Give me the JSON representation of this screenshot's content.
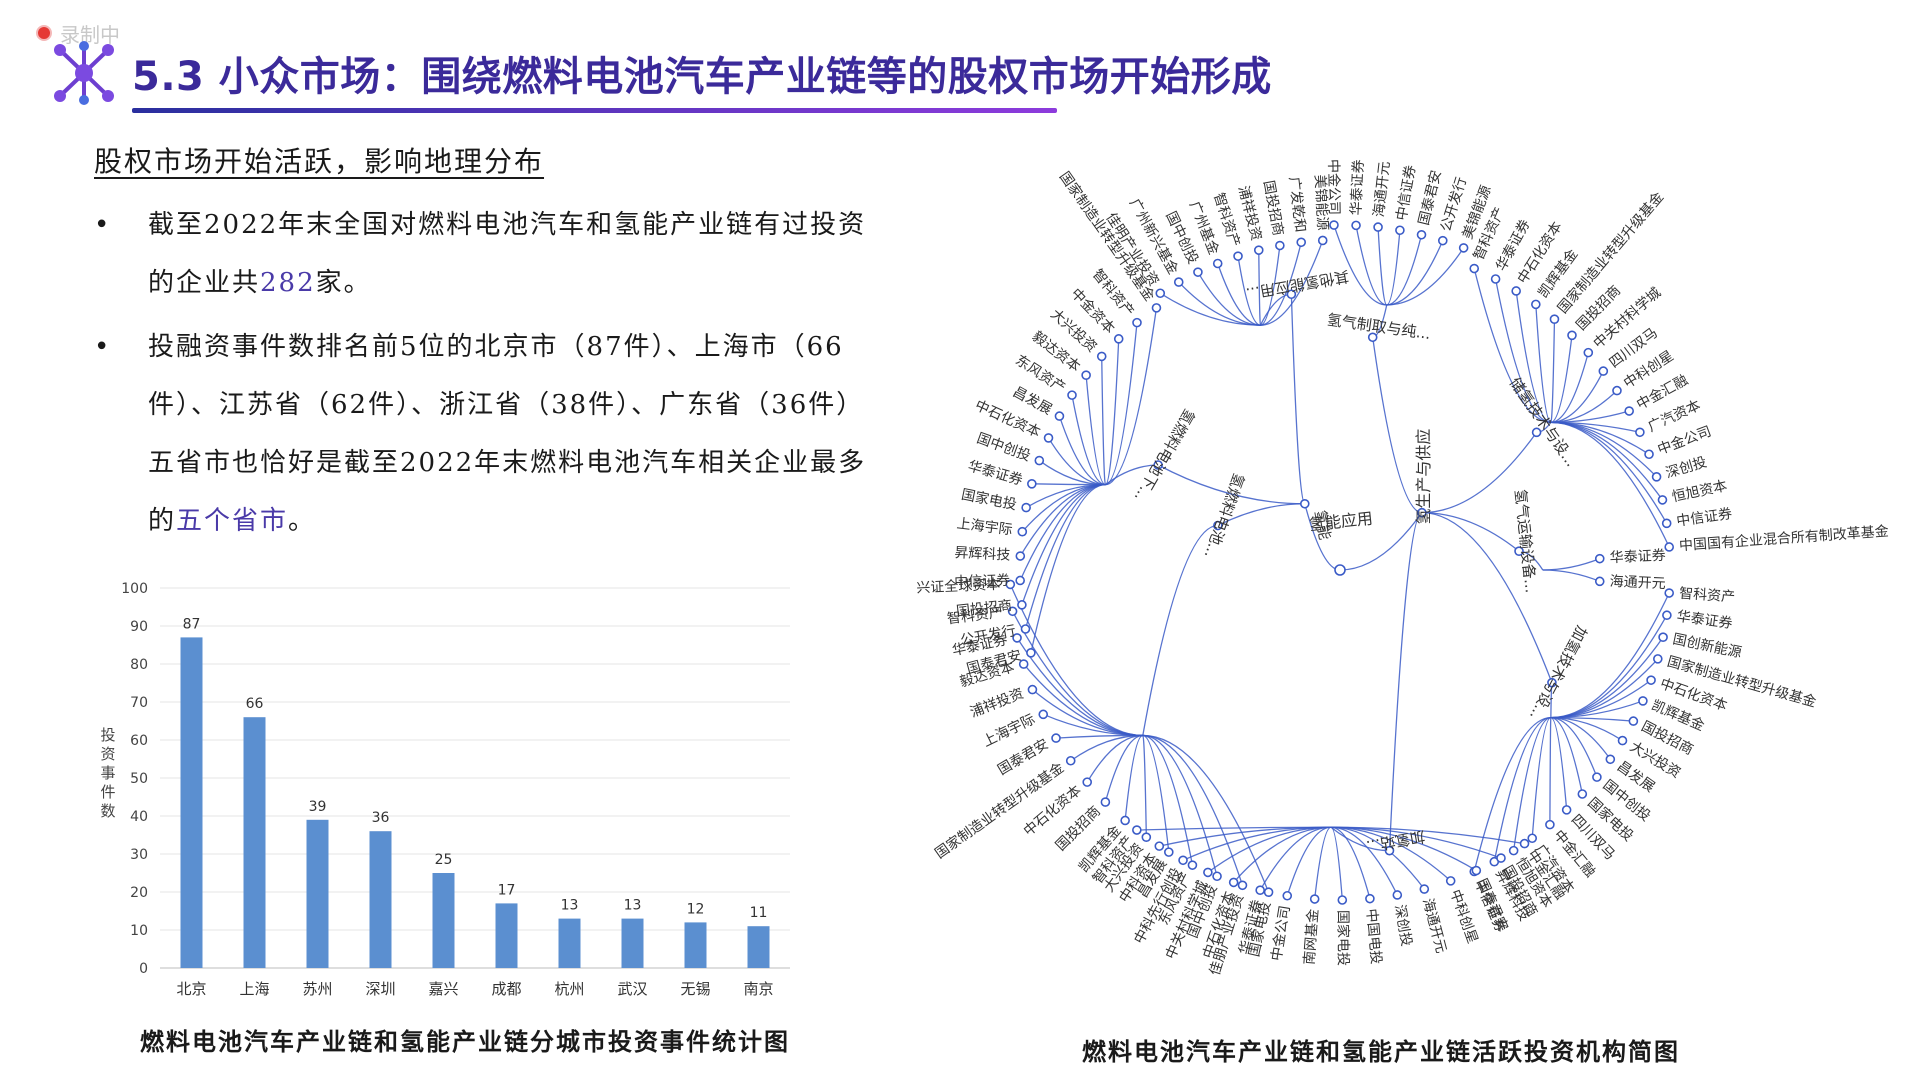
{
  "recording_label": "录制中",
  "header": {
    "title": "5.3 小众市场：围绕燃料电池汽车产业链等的股权市场开始形成"
  },
  "subtitle": "股权市场开始活跃，影响地理分布",
  "bullets": {
    "b1": {
      "pre": "截至2022年末全国对燃料电池汽车和氢能产业链有过投资的企业共",
      "count": "282",
      "post": "家。"
    },
    "b2": {
      "pre": "投融资事件数排名前5位的北京市（87件）、上海市（66件）、江苏省（62件）、浙江省（38件）、广东省（36件）五省市也恰好是截至2022年末燃料电池汽车相关企业最多的",
      "highlight": "五个省市",
      "post": "。"
    }
  },
  "captions": {
    "bar": "燃料电池汽车产业链和氢能产业链分城市投资事件统计图",
    "tree": "燃料电池汽车产业链和氢能产业链活跃投资机构简图"
  },
  "colors": {
    "bar": "#5b8fd0",
    "title": "#3b2a9a",
    "highlight": "#4a3aa8",
    "tree": "#3a5bc7"
  },
  "chart_data": [
    {
      "type": "bar",
      "categories": [
        "北京",
        "上海",
        "苏州",
        "深圳",
        "嘉兴",
        "成都",
        "杭州",
        "武汉",
        "无锡",
        "南京"
      ],
      "values": [
        87,
        66,
        39,
        36,
        25,
        17,
        13,
        13,
        12,
        11
      ],
      "ylabel": "投资事件数",
      "ylim": [
        0,
        100
      ],
      "yticks": [
        0,
        10,
        20,
        30,
        40,
        50,
        60,
        70,
        80,
        90,
        100
      ],
      "grid": true,
      "data_labels": true
    },
    {
      "type": "tree",
      "root": "氢能",
      "children": [
        {
          "name": "氢能应用",
          "children": [
            {
              "name": "氢燃料电池下...",
              "children": [
                "国泰君安",
                "公开发行",
                "国投招商",
                "中信证券",
                "昇辉科技",
                "上海宇际",
                "国家电投",
                "华泰证券",
                "国中创投",
                "中石化资本",
                "昌发展",
                "东风资产",
                "毅达资本",
                "大兴投资",
                "中金资本",
                "智科资产",
                "国家制造业转型升级基金"
              ]
            },
            {
              "name": "氢燃料电池...",
              "children": [
                "国家电投",
                "佳朋产业投资",
                "国中创投",
                "东风资产",
                "昌发展",
                "大兴投资",
                "凯辉基金",
                "国投招商",
                "中石化资本",
                "国家制造业转型升级基金",
                "国泰君安",
                "上海宇际",
                "浦祥投资",
                "毅达资本",
                "华泰证券",
                "智科资产",
                "兴证全球资本"
              ]
            },
            {
              "name": "其他氢能应用...",
              "children": [
                "佳明产业投资",
                "广州新兴基金",
                "国中创投",
                "广州基金",
                "智科资产",
                "浦祥投资",
                "国投招商",
                "广发乾和",
                "美锦能源"
              ]
            }
          ]
        },
        {
          "name": "氢生产与供应",
          "children": [
            {
              "name": "氢气制取与纯...",
              "children": [
                "中金公司",
                "华泰证券",
                "海通开元",
                "中信证券",
                "国泰君安",
                "公开发行",
                "美锦能源"
              ]
            },
            {
              "name": "储氢技术与设...",
              "children": [
                "智科资产",
                "华泰证券",
                "中石化资本",
                "凯辉基金",
                "国家制造业转型升级基金",
                "国投招商",
                "中关村科学城",
                "四川双马",
                "中科创星",
                "中金汇融",
                "广汽资本",
                "中金公司",
                "深创投",
                "恒旭资本",
                "中信证券",
                "中国国有企业混合所有制改革基金"
              ]
            },
            {
              "name": "氢气运输设备...",
              "children": [
                "华泰证券",
                "海通开元"
              ]
            },
            {
              "name": "加氢技术与设...",
              "children": [
                "智科资产",
                "华泰证券",
                "国创新能源",
                "国家制造业转型升级基金",
                "中石化资本",
                "凯辉基金",
                "国投招商",
                "大兴投资",
                "昌发展",
                "国中创投",
                "国家电投",
                "四川双马",
                "中金汇融",
                "广汽资本",
                "恒旭资本",
                "昇辉科技",
                "中信证券"
              ]
            },
            {
              "name": "加氢站...",
              "children": [
                "中金汇融",
                "国投招商",
                "国泰君安",
                "中科创星",
                "海通开元",
                "深创投",
                "中国电投",
                "国家电投",
                "南网基金",
                "中金公司",
                "华泰证券",
                "中石化资本",
                "中关村科学城",
                "中科先行创投",
                "中科资本",
                "智科资产"
              ]
            }
          ]
        }
      ]
    }
  ]
}
